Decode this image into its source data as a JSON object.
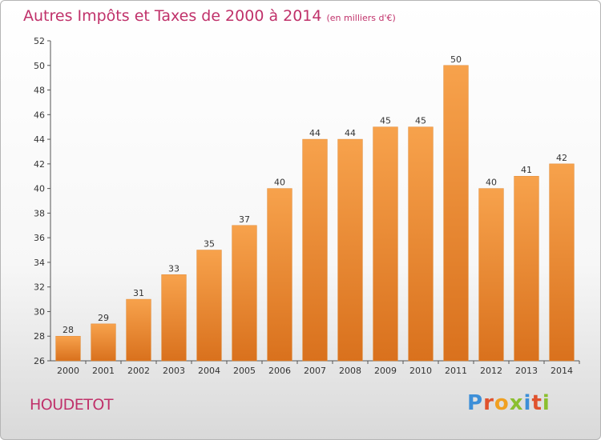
{
  "title": "Autres Impôts et Taxes de 2000 à 2014",
  "subtitle": "(en milliers d'€)",
  "location": "HOUDETOT",
  "logo": {
    "letters": [
      "P",
      "r",
      "o",
      "x",
      "i",
      "t",
      "i"
    ],
    "colors": [
      "#3d8fd8",
      "#e0522d",
      "#f0a021",
      "#8bbf2f",
      "#3d8fd8",
      "#e0522d",
      "#8bbf2f"
    ]
  },
  "colors": {
    "bar": "#f0913a",
    "bar_dark": "#d9701c",
    "accent": "#c0316a"
  },
  "chart_data": {
    "type": "bar",
    "title": "Autres Impôts et Taxes de 2000 à 2014",
    "subtitle": "(en milliers d'€)",
    "xlabel": "",
    "ylabel": "",
    "categories": [
      "2000",
      "2001",
      "2002",
      "2003",
      "2004",
      "2005",
      "2006",
      "2007",
      "2008",
      "2009",
      "2010",
      "2011",
      "2012",
      "2013",
      "2014"
    ],
    "values": [
      28,
      29,
      31,
      33,
      35,
      37,
      40,
      44,
      44,
      45,
      45,
      50,
      40,
      41,
      42
    ],
    "ylim": [
      26,
      52
    ],
    "yticks": [
      26,
      28,
      30,
      32,
      34,
      36,
      38,
      40,
      42,
      44,
      46,
      48,
      50,
      52
    ],
    "grid": false,
    "legend": "none"
  }
}
